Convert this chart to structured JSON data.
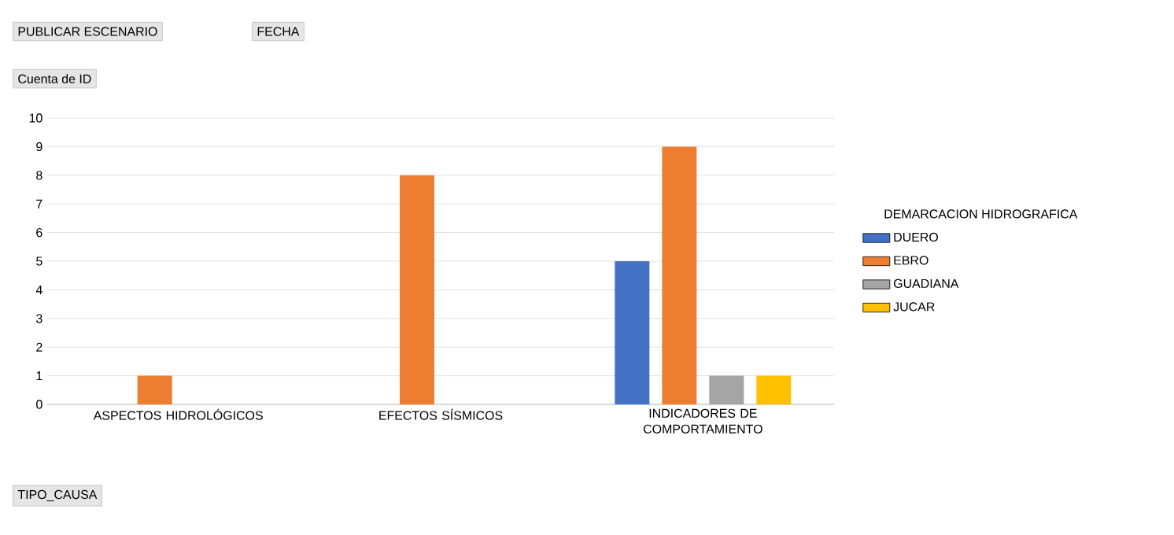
{
  "chart_data": {
    "type": "bar",
    "categories": [
      "ASPECTOS HIDROLÓGICOS",
      "EFECTOS SÍSMICOS",
      "INDICADORES DE COMPORTAMIENTO"
    ],
    "series": [
      {
        "name": "DUERO",
        "color": "#4472c4",
        "values": [
          null,
          null,
          5
        ]
      },
      {
        "name": "EBRO",
        "color": "#ed7d31",
        "values": [
          1,
          8,
          9
        ]
      },
      {
        "name": "GUADIANA",
        "color": "#a5a5a5",
        "values": [
          null,
          null,
          1
        ]
      },
      {
        "name": "JUCAR",
        "color": "#ffc000",
        "values": [
          null,
          null,
          1
        ]
      }
    ],
    "legend_title": "DEMARCACION HIDROGRAFICA",
    "legend": "right",
    "ylim": [
      0,
      10
    ],
    "yticks": [
      0,
      1,
      2,
      3,
      4,
      5,
      6,
      7,
      8,
      9,
      10
    ],
    "grid": "y",
    "annotations": [
      "PUBLICAR ESCENARIO",
      "FECHA",
      "Cuenta de ID",
      "TIPO_CAUSA"
    ]
  }
}
